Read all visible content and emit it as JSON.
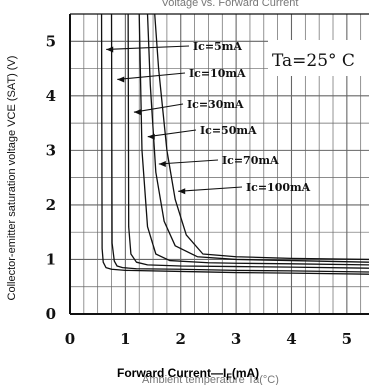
{
  "chart_data": {
    "type": "line",
    "title": "Voltage vs. Forward Current",
    "xlabel": "Forward Current—I",
    "xlabel_sub": "F",
    "xlabel_unit": "(mA)",
    "xlabel_ghost": "Ambient temperature Ta(°C)",
    "ylabel": "Collector-emitter saturation voltage VCE (SAT) (V)",
    "condition": "Ta=25° C",
    "xlim": [
      0,
      5.4
    ],
    "ylim": [
      0,
      5.5
    ],
    "x_ticks": [
      "0",
      "1",
      "2",
      "3",
      "4",
      "5"
    ],
    "y_ticks": [
      "0",
      "1",
      "2",
      "3",
      "4",
      "5"
    ],
    "grid": true,
    "series": [
      {
        "name": "Ic=5mA",
        "x": [
          0.57,
          0.58,
          0.6,
          0.65,
          0.75,
          1.0,
          2.0,
          3.0,
          4.0,
          5.4
        ],
        "y": [
          5.5,
          1.2,
          0.95,
          0.85,
          0.82,
          0.8,
          0.78,
          0.76,
          0.75,
          0.73
        ]
      },
      {
        "name": "Ic=10mA",
        "x": [
          0.75,
          0.76,
          0.8,
          0.85,
          0.95,
          1.2,
          2.0,
          3.0,
          4.0,
          5.4
        ],
        "y": [
          5.5,
          1.3,
          0.97,
          0.88,
          0.85,
          0.83,
          0.82,
          0.8,
          0.79,
          0.77
        ]
      },
      {
        "name": "Ic=30mA",
        "x": [
          1.05,
          1.06,
          1.1,
          1.2,
          1.4,
          2.0,
          3.0,
          4.0,
          5.4
        ],
        "y": [
          5.5,
          1.6,
          1.1,
          0.95,
          0.9,
          0.88,
          0.87,
          0.86,
          0.84
        ]
      },
      {
        "name": "Ic=50mA",
        "x": [
          1.25,
          1.3,
          1.4,
          1.55,
          1.8,
          2.5,
          3.0,
          4.0,
          5.4
        ],
        "y": [
          5.5,
          3.0,
          1.6,
          1.1,
          0.98,
          0.94,
          0.93,
          0.92,
          0.9
        ]
      },
      {
        "name": "Ic=70mA",
        "x": [
          1.4,
          1.45,
          1.55,
          1.7,
          1.9,
          2.3,
          3.0,
          4.0,
          5.4
        ],
        "y": [
          5.5,
          4.2,
          2.6,
          1.7,
          1.25,
          1.05,
          1.0,
          0.98,
          0.95
        ]
      },
      {
        "name": "Ic=100mA",
        "x": [
          1.53,
          1.6,
          1.75,
          1.9,
          2.1,
          2.4,
          3.0,
          4.0,
          5.4
        ],
        "y": [
          5.5,
          4.5,
          3.0,
          2.1,
          1.45,
          1.1,
          1.05,
          1.02,
          1.0
        ]
      }
    ],
    "line_color": "#111111",
    "grid_color": "#666666"
  }
}
